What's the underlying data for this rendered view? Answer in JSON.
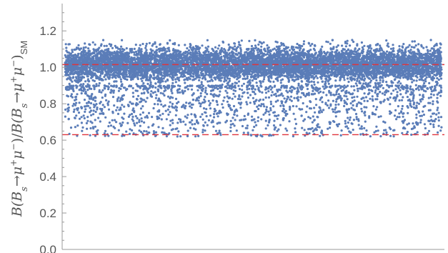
{
  "chart_data": {
    "type": "scatter",
    "title": "",
    "xlabel": "",
    "ylabel": {
      "text": "B(Bs→μ+μ−)/B(Bs→μ+μ−)SM",
      "parts": [
        {
          "t": "B(B",
          "style": "italic"
        },
        {
          "t": "s",
          "style": "sub"
        },
        {
          "t": "→",
          "style": "normal"
        },
        {
          "t": "μ",
          "style": "italic"
        },
        {
          "t": "+",
          "style": "sup"
        },
        {
          "t": "μ",
          "style": "italic"
        },
        {
          "t": "−",
          "style": "sup"
        },
        {
          "t": ")/",
          "style": "normal"
        },
        {
          "t": "B(B",
          "style": "italic"
        },
        {
          "t": "s",
          "style": "sub"
        },
        {
          "t": "→",
          "style": "normal"
        },
        {
          "t": "μ",
          "style": "italic"
        },
        {
          "t": "+",
          "style": "sup"
        },
        {
          "t": "μ",
          "style": "italic"
        },
        {
          "t": "−",
          "style": "sup"
        },
        {
          "t": ")",
          "style": "normal"
        },
        {
          "t": "SM",
          "style": "sub-sans"
        }
      ]
    },
    "ylim": [
      0,
      1.35
    ],
    "yticks": [
      "0.0",
      "0.2",
      "0.4",
      "0.6",
      "0.8",
      "1.0",
      "1.2"
    ],
    "ytick_values": [
      0,
      0.2,
      0.4,
      0.6,
      0.8,
      1.0,
      1.2
    ],
    "xticks_shown": false,
    "grid": false,
    "series": [
      {
        "color": "#5b7db8",
        "points_approx": 9000,
        "distribution": {
          "core_range": [
            0.9,
            1.13
          ],
          "tail_range": [
            0.62,
            0.9
          ],
          "outliers": [
            1.15,
            1.19
          ]
        }
      }
    ],
    "reference_lines": [
      {
        "y": 1.015,
        "color": "#e0343c",
        "style": "dashed"
      },
      {
        "y": 0.63,
        "color": "#e0343c",
        "style": "dashed"
      }
    ]
  }
}
